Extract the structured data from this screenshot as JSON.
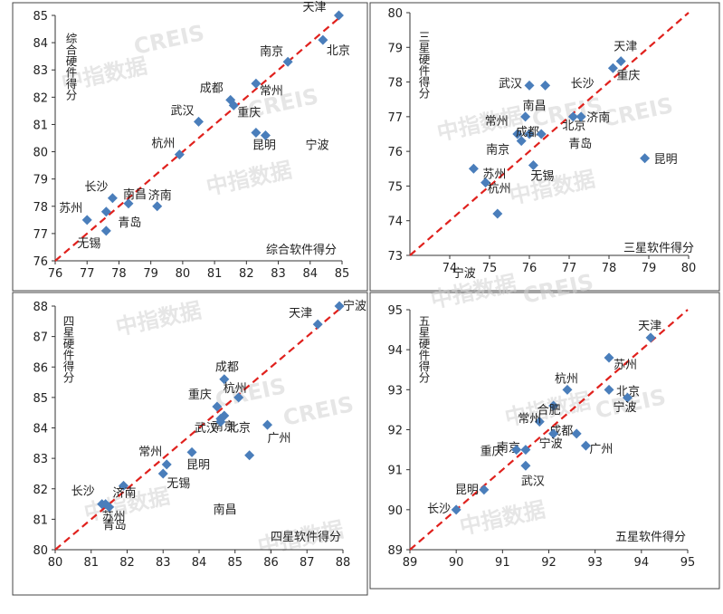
{
  "colors": {
    "marker": "#4a7ebb",
    "line": "#e0211d",
    "frame": "#444444"
  },
  "watermark": [
    "中指数据",
    "CREIS"
  ],
  "chart_data": [
    {
      "type": "scatter",
      "title": "综合软件得分",
      "xlabel": "综合软件得分",
      "ylabel": "综合硬件得分",
      "xlim": [
        76,
        85
      ],
      "ylim": [
        76,
        85
      ],
      "xticks": [
        76,
        77,
        78,
        79,
        80,
        81,
        82,
        83,
        84,
        85
      ],
      "yticks": [
        76,
        77,
        78,
        79,
        80,
        81,
        82,
        83,
        84,
        85
      ],
      "reference_line": "y=x",
      "points": [
        {
          "name": "天津",
          "x": 84.9,
          "y": 85.0
        },
        {
          "name": "北京",
          "x": 84.4,
          "y": 84.1
        },
        {
          "name": "南京",
          "x": 83.3,
          "y": 83.3
        },
        {
          "name": "成都",
          "x": 81.5,
          "y": 81.9
        },
        {
          "name": "重庆",
          "x": 81.6,
          "y": 81.7
        },
        {
          "name": "常州",
          "x": 82.3,
          "y": 82.5
        },
        {
          "name": "武汉",
          "x": 80.5,
          "y": 81.1
        },
        {
          "name": "昆明",
          "x": 82.3,
          "y": 80.7
        },
        {
          "name": "杭州",
          "x": 79.9,
          "y": 79.9
        },
        {
          "name": "宁波",
          "x": 82.6,
          "y": 80.6
        },
        {
          "name": "南昌",
          "x": 78.3,
          "y": 78.1
        },
        {
          "name": "长沙",
          "x": 77.8,
          "y": 78.3
        },
        {
          "name": "济南",
          "x": 79.2,
          "y": 78.0
        },
        {
          "name": "苏州",
          "x": 77.0,
          "y": 77.5
        },
        {
          "name": "青岛",
          "x": 77.6,
          "y": 77.8
        },
        {
          "name": "无锡",
          "x": 77.6,
          "y": 77.1
        }
      ]
    },
    {
      "type": "scatter",
      "title": "三星软件得分",
      "xlabel": "三星软件得分",
      "ylabel": "三星硬件得分",
      "xlim": [
        73,
        80
      ],
      "ylim": [
        73,
        80
      ],
      "xticks": [
        74,
        75,
        76,
        77,
        78,
        79,
        80
      ],
      "yticks": [
        73,
        74,
        75,
        76,
        77,
        78,
        79,
        80
      ],
      "reference_line": "y=x",
      "points": [
        {
          "name": "天津",
          "x": 78.3,
          "y": 78.6
        },
        {
          "name": "重庆",
          "x": 78.1,
          "y": 78.4
        },
        {
          "name": "武汉",
          "x": 76.0,
          "y": 77.9
        },
        {
          "name": "长沙",
          "x": 76.4,
          "y": 77.9
        },
        {
          "name": "南昌",
          "x": 75.9,
          "y": 77.0
        },
        {
          "name": "北京",
          "x": 77.1,
          "y": 77.0
        },
        {
          "name": "济南",
          "x": 77.3,
          "y": 77.0
        },
        {
          "name": "常州",
          "x": 75.7,
          "y": 76.5
        },
        {
          "name": "成都",
          "x": 76.0,
          "y": 76.5
        },
        {
          "name": "南京",
          "x": 75.8,
          "y": 76.3
        },
        {
          "name": "青岛",
          "x": 76.3,
          "y": 76.5
        },
        {
          "name": "昆明",
          "x": 78.9,
          "y": 75.8
        },
        {
          "name": "苏州",
          "x": 74.6,
          "y": 75.5
        },
        {
          "name": "无锡",
          "x": 76.1,
          "y": 75.6
        },
        {
          "name": "杭州",
          "x": 74.9,
          "y": 75.1
        },
        {
          "name": "宁波",
          "x": 75.2,
          "y": 74.2
        }
      ]
    },
    {
      "type": "scatter",
      "title": "四星软件得分",
      "xlabel": "四星软件得分",
      "ylabel": "四星硬件得分",
      "xlim": [
        80,
        88
      ],
      "ylim": [
        80,
        88
      ],
      "xticks": [
        80,
        81,
        82,
        83,
        84,
        85,
        86,
        87,
        88
      ],
      "yticks": [
        80,
        81,
        82,
        83,
        84,
        85,
        86,
        87,
        88
      ],
      "reference_line": "y=x",
      "points": [
        {
          "name": "天津",
          "x": 87.3,
          "y": 87.4
        },
        {
          "name": "宁波",
          "x": 87.9,
          "y": 88.0
        },
        {
          "name": "成都",
          "x": 84.7,
          "y": 85.6
        },
        {
          "name": "重庆",
          "x": 84.5,
          "y": 84.7
        },
        {
          "name": "杭州",
          "x": 85.1,
          "y": 85.0
        },
        {
          "name": "北京",
          "x": 84.6,
          "y": 84.3
        },
        {
          "name": "南京",
          "x": 84.7,
          "y": 84.4
        },
        {
          "name": "武汉",
          "x": 84.6,
          "y": 84.2
        },
        {
          "name": "广州",
          "x": 85.9,
          "y": 84.1
        },
        {
          "name": "昆明",
          "x": 83.8,
          "y": 83.2
        },
        {
          "name": "常州",
          "x": 83.1,
          "y": 82.8
        },
        {
          "name": "无锡",
          "x": 83.0,
          "y": 82.5
        },
        {
          "name": "长沙",
          "x": 81.3,
          "y": 81.5
        },
        {
          "name": "济南",
          "x": 81.9,
          "y": 82.1
        },
        {
          "name": "苏州",
          "x": 81.4,
          "y": 81.5
        },
        {
          "name": "青岛",
          "x": 81.5,
          "y": 81.4
        },
        {
          "name": "南昌",
          "x": 85.4,
          "y": 83.1
        }
      ]
    },
    {
      "type": "scatter",
      "title": "五星软件得分",
      "xlabel": "五星软件得分",
      "ylabel": "五星硬件得分",
      "xlim": [
        89,
        95
      ],
      "ylim": [
        89,
        95
      ],
      "xticks": [
        89,
        90,
        91,
        92,
        93,
        94,
        95
      ],
      "yticks": [
        89,
        90,
        91,
        92,
        93,
        94,
        95
      ],
      "reference_line": "y=x",
      "points": [
        {
          "name": "天津",
          "x": 94.2,
          "y": 94.3
        },
        {
          "name": "苏州",
          "x": 93.3,
          "y": 93.8
        },
        {
          "name": "杭州",
          "x": 92.4,
          "y": 93.0
        },
        {
          "name": "北京",
          "x": 93.3,
          "y": 93.0
        },
        {
          "name": "宁波",
          "x": 93.7,
          "y": 92.8
        },
        {
          "name": "合肥",
          "x": 92.1,
          "y": 92.6
        },
        {
          "name": "常州",
          "x": 91.8,
          "y": 92.2
        },
        {
          "name": "成都",
          "x": 92.6,
          "y": 91.9
        },
        {
          "name": "广州",
          "x": 92.8,
          "y": 91.6
        },
        {
          "name": "南京",
          "x": 91.5,
          "y": 91.5
        },
        {
          "name": "重庆",
          "x": 91.3,
          "y": 91.5
        },
        {
          "name": "宁波",
          "x": 92.1,
          "y": 91.9
        },
        {
          "name": "武汉",
          "x": 91.5,
          "y": 91.1
        },
        {
          "name": "昆明",
          "x": 90.6,
          "y": 90.5
        },
        {
          "name": "长沙",
          "x": 90.0,
          "y": 90.0
        }
      ]
    }
  ]
}
